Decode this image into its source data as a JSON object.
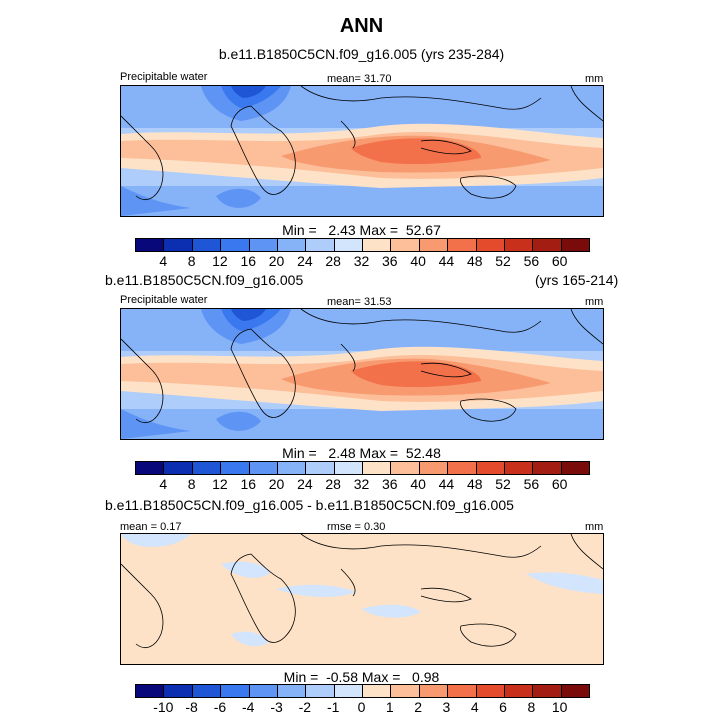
{
  "title": "ANN",
  "panel1": {
    "header": "b.e11.B1850C5CN.f09_g16.005 (yrs 235-284)",
    "field": "Precipitable water",
    "mean_label": "mean=",
    "mean": "31.70",
    "units": "mm",
    "minmax_text": "Min =   2.43 Max =  52.67"
  },
  "panel2": {
    "header_left": "b.e11.B1850C5CN.f09_g16.005",
    "header_right": "(yrs 165-214)",
    "field": "Precipitable water",
    "mean_label": "mean=",
    "mean": "31.53",
    "units": "mm",
    "minmax_text": "Min =   2.48 Max =  52.48"
  },
  "panel3": {
    "header": "b.e11.B1850C5CN.f09_g16.005 - b.e11.B1850C5CN.f09_g16.005",
    "mean_label": "mean =",
    "mean": "0.17",
    "rmse_label": "rmse =",
    "rmse": "0.30",
    "units": "mm",
    "minmax_text": "Min =  -0.58 Max =   0.98"
  },
  "colorbar_abs": {
    "ticks": [
      "4",
      "8",
      "12",
      "16",
      "20",
      "24",
      "28",
      "32",
      "36",
      "40",
      "44",
      "48",
      "52",
      "56",
      "60"
    ],
    "colors": [
      "#08087a",
      "#0b2fb0",
      "#1f56d6",
      "#3a78ef",
      "#5e95f5",
      "#86b2f8",
      "#aecdfb",
      "#d2e5fc",
      "#fde2c8",
      "#fcbf9a",
      "#f89a70",
      "#f2714a",
      "#e44b2d",
      "#c9301c",
      "#a41d12",
      "#7a0b0b"
    ]
  },
  "colorbar_diff": {
    "ticks": [
      "-10",
      "-8",
      "-6",
      "-4",
      "-3",
      "-2",
      "-1",
      "0",
      "1",
      "2",
      "3",
      "4",
      "6",
      "8",
      "10"
    ],
    "colors": [
      "#08087a",
      "#0b2fb0",
      "#1f56d6",
      "#3a78ef",
      "#5e95f5",
      "#86b2f8",
      "#aecdfb",
      "#d2e5fc",
      "#fde2c8",
      "#fcbf9a",
      "#f89a70",
      "#f2714a",
      "#e44b2d",
      "#c9301c",
      "#a41d12",
      "#7a0b0b"
    ]
  },
  "chart_data": [
    {
      "type": "heatmap",
      "title": "b.e11.B1850C5CN.f09_g16.005 (yrs 235-284)",
      "variable": "Precipitable water",
      "units": "mm",
      "mean": 31.7,
      "min": 2.43,
      "max": 52.67,
      "levels": [
        4,
        8,
        12,
        16,
        20,
        24,
        28,
        32,
        36,
        40,
        44,
        48,
        52,
        56,
        60
      ]
    },
    {
      "type": "heatmap",
      "title": "b.e11.B1850C5CN.f09_g16.005 (yrs 165-214)",
      "variable": "Precipitable water",
      "units": "mm",
      "mean": 31.53,
      "min": 2.48,
      "max": 52.48,
      "levels": [
        4,
        8,
        12,
        16,
        20,
        24,
        28,
        32,
        36,
        40,
        44,
        48,
        52,
        56,
        60
      ]
    },
    {
      "type": "heatmap",
      "title": "b.e11.B1850C5CN.f09_g16.005 - b.e11.B1850C5CN.f09_g16.005",
      "units": "mm",
      "mean": 0.17,
      "rmse": 0.3,
      "min": -0.58,
      "max": 0.98,
      "levels": [
        -10,
        -8,
        -6,
        -4,
        -3,
        -2,
        -1,
        0,
        1,
        2,
        3,
        4,
        6,
        8,
        10
      ]
    }
  ]
}
